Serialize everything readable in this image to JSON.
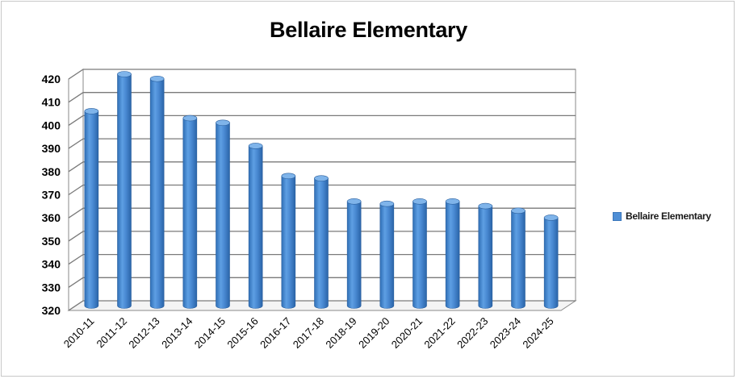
{
  "chart_data": {
    "type": "bar",
    "title": "Bellaire Elementary",
    "categories": [
      "2010-11",
      "2011-12",
      "2012-13",
      "2013-14",
      "2014-15",
      "2015-16",
      "2016-17",
      "2017-18",
      "2018-19",
      "2019-20",
      "2020-21",
      "2021-22",
      "2022-23",
      "2023-24",
      "2024-25"
    ],
    "series": [
      {
        "name": "Bellaire Elementary",
        "color": "#4f8fd6",
        "values": [
          404,
          420,
          418,
          401,
          399,
          389,
          376,
          375,
          365,
          364,
          365,
          365,
          363,
          361,
          358
        ]
      }
    ],
    "ylim": [
      320,
      420
    ],
    "yticks": [
      320,
      330,
      340,
      350,
      360,
      370,
      380,
      390,
      400,
      410,
      420
    ],
    "grid": true,
    "legend": "right",
    "style": "3d-cylinder"
  }
}
